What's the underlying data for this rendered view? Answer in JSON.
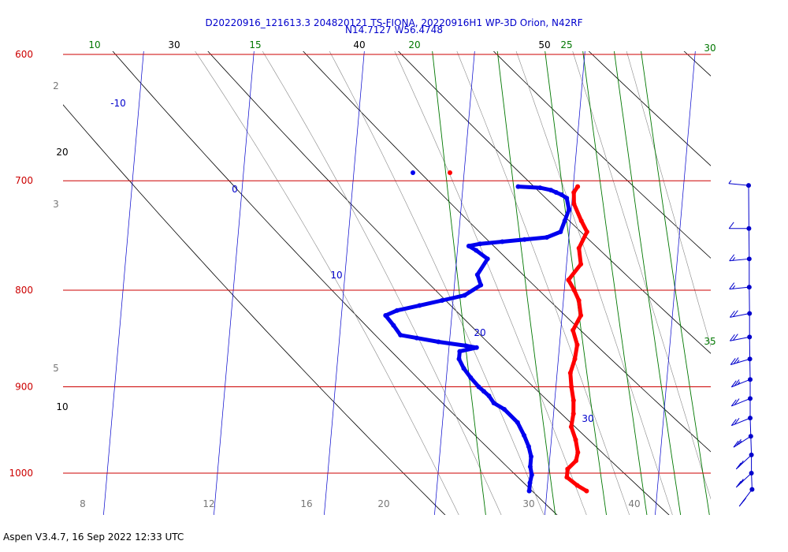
{
  "chart_data": {
    "type": "skew-t",
    "title": "D20220916_121613.3 204820121 TS-FIONA, 20220916H1 WP-3D Orion, N42RF",
    "subtitle": "N14.7127 W56.4748",
    "footer": "Aspen V3.4.7, 16 Sep 2022  12:33 UTC",
    "colors": {
      "isobar": "#cc0000",
      "mixing_ratio": "#007700",
      "isotherm": "#0000cc",
      "dry_adiabat": "#000000",
      "moist_adiabat": "#888888",
      "temperature": "#ff0000",
      "dewpoint": "#0000ee",
      "wind": "#0000cc"
    },
    "pressure_ticks": [
      "600",
      "700",
      "800",
      "900",
      "1000"
    ],
    "top_black_labels": [
      "30",
      "40",
      "50"
    ],
    "top_green_labels": [
      "10",
      "15",
      "20",
      "25",
      "30"
    ],
    "side_black_labels": [
      "20",
      "10"
    ],
    "side_gray_labels": [
      "2",
      "3",
      "5"
    ],
    "isotherm_labels": [
      "-10",
      "0",
      "10",
      "20",
      "30"
    ],
    "mixing_label_35": "35",
    "bottom_gray_labels": [
      "8",
      "12",
      "16",
      "20",
      "30",
      "40"
    ],
    "temperature": [
      [
        705,
        20.4
      ],
      [
        710,
        20.1
      ],
      [
        720,
        20.2
      ],
      [
        735,
        21.0
      ],
      [
        745,
        21.6
      ],
      [
        760,
        21.0
      ],
      [
        775,
        21.3
      ],
      [
        790,
        20.3
      ],
      [
        800,
        20.9
      ],
      [
        810,
        21.4
      ],
      [
        825,
        21.7
      ],
      [
        840,
        21.1
      ],
      [
        855,
        21.6
      ],
      [
        870,
        21.5
      ],
      [
        885,
        21.2
      ],
      [
        900,
        21.4
      ],
      [
        915,
        21.7
      ],
      [
        930,
        21.8
      ],
      [
        945,
        21.7
      ],
      [
        960,
        22.2
      ],
      [
        975,
        22.5
      ],
      [
        985,
        22.4
      ],
      [
        995,
        21.7
      ],
      [
        1005,
        21.7
      ],
      [
        1015,
        22.7
      ],
      [
        1022,
        23.6
      ]
    ],
    "dewpoint": [
      [
        705,
        15.0
      ],
      [
        706,
        17.0
      ],
      [
        708,
        18.0
      ],
      [
        710,
        18.5
      ],
      [
        712,
        19.0
      ],
      [
        715,
        19.5
      ],
      [
        725,
        19.8
      ],
      [
        735,
        19.5
      ],
      [
        745,
        19.2
      ],
      [
        750,
        18.0
      ],
      [
        752,
        16.0
      ],
      [
        754,
        14.0
      ],
      [
        756,
        12.0
      ],
      [
        758,
        11.0
      ],
      [
        762,
        11.7
      ],
      [
        770,
        12.8
      ],
      [
        785,
        12.0
      ],
      [
        795,
        12.4
      ],
      [
        805,
        11.0
      ],
      [
        810,
        9.0
      ],
      [
        815,
        7.0
      ],
      [
        820,
        5.0
      ],
      [
        825,
        4.0
      ],
      [
        835,
        4.8
      ],
      [
        845,
        5.5
      ],
      [
        848,
        7.0
      ],
      [
        852,
        9.0
      ],
      [
        856,
        11.5
      ],
      [
        858,
        12.5
      ],
      [
        862,
        11.0
      ],
      [
        870,
        11.0
      ],
      [
        880,
        11.5
      ],
      [
        890,
        12.2
      ],
      [
        900,
        13.0
      ],
      [
        905,
        13.5
      ],
      [
        910,
        14.0
      ],
      [
        918,
        14.5
      ],
      [
        925,
        15.5
      ],
      [
        940,
        16.8
      ],
      [
        955,
        17.5
      ],
      [
        968,
        18.0
      ],
      [
        980,
        18.3
      ],
      [
        992,
        18.3
      ],
      [
        1002,
        18.5
      ],
      [
        1012,
        18.4
      ],
      [
        1022,
        18.4
      ]
    ],
    "wind_barbs": [
      {
        "p": 704,
        "speed": 5,
        "dir": 85
      },
      {
        "p": 742,
        "speed": 10,
        "dir": 90
      },
      {
        "p": 770,
        "speed": 15,
        "dir": 95
      },
      {
        "p": 797,
        "speed": 15,
        "dir": 95
      },
      {
        "p": 823,
        "speed": 20,
        "dir": 100
      },
      {
        "p": 847,
        "speed": 20,
        "dir": 100
      },
      {
        "p": 870,
        "speed": 25,
        "dir": 105
      },
      {
        "p": 892,
        "speed": 25,
        "dir": 110
      },
      {
        "p": 913,
        "speed": 20,
        "dir": 110
      },
      {
        "p": 935,
        "speed": 20,
        "dir": 110
      },
      {
        "p": 956,
        "speed": 25,
        "dir": 120
      },
      {
        "p": 978,
        "speed": 20,
        "dir": 130
      },
      {
        "p": 1000,
        "speed": 25,
        "dir": 130
      },
      {
        "p": 1020,
        "speed": 25,
        "dir": 140
      }
    ]
  }
}
